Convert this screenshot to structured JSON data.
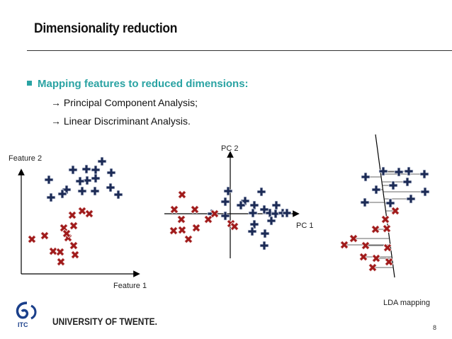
{
  "slide": {
    "title": "Dimensionality reduction",
    "bullet": "Mapping features to reduced dimensions:",
    "subitems": [
      "→ Principal Component Analysis;",
      "→ Linear Discriminant Analysis."
    ],
    "footer": "UNIVERSITY OF TWENTE.",
    "logo_text": "ITC",
    "page_number": "8"
  },
  "diagram": {
    "left_ylabel": "Feature 2",
    "left_xlabel": "Feature 1",
    "mid_ylabel": "PC 2",
    "mid_xlabel": "PC 1",
    "right_label": "LDA mapping",
    "colors": {
      "plus": "#1b2a55",
      "cross": "#a01a1a",
      "accent": "#2aa3a3"
    }
  }
}
